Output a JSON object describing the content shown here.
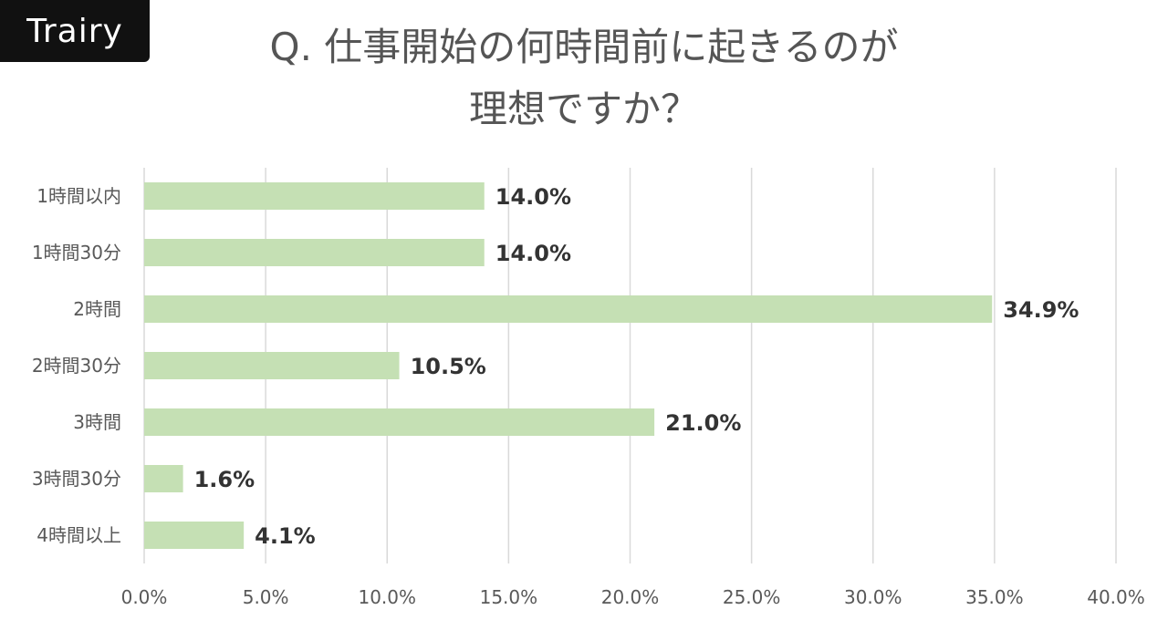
{
  "brand": {
    "logo_text": "Trairy",
    "bg_color": "#111111"
  },
  "title": {
    "line1": "Q. 仕事開始の何時間前に起きるのが",
    "line2": "理想ですか？"
  },
  "chart_data": {
    "type": "bar",
    "orientation": "horizontal",
    "categories": [
      "1時間以内",
      "1時間30分",
      "2時間",
      "2時間30分",
      "3時間",
      "3時間30分",
      "4時間以上"
    ],
    "values": [
      14.0,
      14.0,
      34.9,
      10.5,
      21.0,
      1.6,
      4.1
    ],
    "data_labels": [
      "14.0%",
      "14.0%",
      "34.9%",
      "10.5%",
      "21.0%",
      "1.6%",
      "4.1%"
    ],
    "xlim": [
      0,
      40
    ],
    "xticks": [
      0,
      5,
      10,
      15,
      20,
      25,
      30,
      35,
      40
    ],
    "xtick_labels": [
      "0.0%",
      "5.0%",
      "10.0%",
      "15.0%",
      "20.0%",
      "25.0%",
      "30.0%",
      "35.0%",
      "40.0%"
    ],
    "grid": "vertical",
    "legend": "none",
    "bar_color": "#c5e0b4",
    "grid_color": "#d9d9d9",
    "label_color": "#333333",
    "tick_color": "#595959"
  }
}
